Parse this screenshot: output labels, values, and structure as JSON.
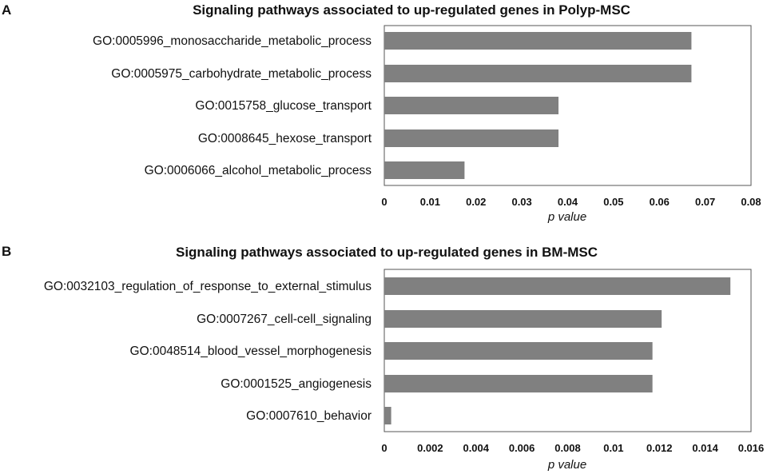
{
  "colors": {
    "bar": "#808080",
    "text": "#111111"
  },
  "chart_data": [
    {
      "panel": "A",
      "type": "bar",
      "orientation": "horizontal",
      "title": "Signaling pathways associated to up-regulated genes in Polyp-MSC",
      "xlabel": "p value",
      "ylabel": "",
      "categories": [
        "GO:0005996_monosaccharide_metabolic_process",
        "GO:0005975_carbohydrate_metabolic_process",
        "GO:0015758_glucose_transport",
        "GO:0008645_hexose_transport",
        "GO:0006066_alcohol_metabolic_process"
      ],
      "values": [
        0.067,
        0.067,
        0.038,
        0.038,
        0.0175
      ],
      "xlim": [
        0,
        0.08
      ],
      "xticks": [
        "0",
        "0.01",
        "0.02",
        "0.03",
        "0.04",
        "0.05",
        "0.06",
        "0.07",
        "0.08"
      ],
      "grid": false
    },
    {
      "panel": "B",
      "type": "bar",
      "orientation": "horizontal",
      "title": "Signaling pathways associated to up-regulated genes in BM-MSC",
      "xlabel": "p value",
      "ylabel": "",
      "categories": [
        "GO:0032103_regulation_of_response_to_external_stimulus",
        "GO:0007267_cell-cell_signaling",
        "GO:0048514_blood_vessel_morphogenesis",
        "GO:0001525_angiogenesis",
        "GO:0007610_behavior"
      ],
      "values": [
        0.0151,
        0.0121,
        0.0117,
        0.0117,
        0.0003
      ],
      "xlim": [
        0,
        0.016
      ],
      "xticks": [
        "0",
        "0.002",
        "0.004",
        "0.006",
        "0.008",
        "0.01",
        "0.012",
        "0.014",
        "0.016"
      ],
      "grid": false
    }
  ]
}
